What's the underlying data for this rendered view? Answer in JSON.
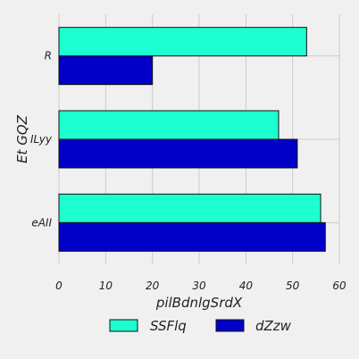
{
  "chart_data": {
    "type": "bar",
    "orientation": "horizontal",
    "categories": [
      "R",
      "ILyy",
      "eAII"
    ],
    "series": [
      {
        "name": "SSFlq",
        "values": [
          53,
          47,
          56
        ],
        "color": "#1effd1"
      },
      {
        "name": "dZzw",
        "values": [
          20,
          51,
          57
        ],
        "color": "#0000c8"
      }
    ],
    "xlabel": "pilBdnlgSrdX",
    "ylabel": "Et GQZ",
    "xlim": [
      0,
      60
    ],
    "xticks": [
      0,
      10,
      20,
      30,
      40,
      50,
      60
    ],
    "grid": true,
    "legend_position": "bottom"
  }
}
